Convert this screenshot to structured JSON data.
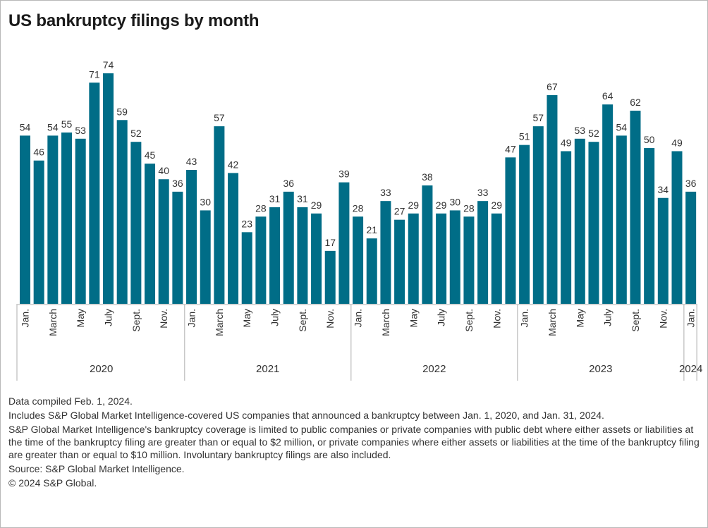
{
  "title": "US bankruptcy filings by month",
  "colors": {
    "bar": "#006d87",
    "axis": "#c8c8c8",
    "label": "#333333"
  },
  "chart_data": {
    "type": "bar",
    "title": "US bankruptcy filings by month",
    "xlabel": "",
    "ylabel": "",
    "ylim": [
      0,
      74
    ],
    "grid": false,
    "legend": "none",
    "years": [
      {
        "label": "2020",
        "start": 0,
        "count": 12
      },
      {
        "label": "2021",
        "start": 12,
        "count": 12
      },
      {
        "label": "2022",
        "start": 24,
        "count": 12
      },
      {
        "label": "2023",
        "start": 36,
        "count": 12
      },
      {
        "label": "2024",
        "start": 48,
        "count": 1
      }
    ],
    "tick_labels": [
      "Jan.",
      "",
      "March",
      "",
      "May",
      "",
      "July",
      "",
      "Sept.",
      "",
      "Nov.",
      "",
      "Jan.",
      "",
      "March",
      "",
      "May",
      "",
      "July",
      "",
      "Sept.",
      "",
      "Nov.",
      "",
      "Jan.",
      "",
      "March",
      "",
      "May",
      "",
      "July",
      "",
      "Sept.",
      "",
      "Nov.",
      "",
      "Jan.",
      "",
      "March",
      "",
      "May",
      "",
      "July",
      "",
      "Sept.",
      "",
      "Nov.",
      "",
      "Jan."
    ],
    "categories": [
      "Jan 2020",
      "Feb 2020",
      "Mar 2020",
      "Apr 2020",
      "May 2020",
      "Jun 2020",
      "Jul 2020",
      "Aug 2020",
      "Sep 2020",
      "Oct 2020",
      "Nov 2020",
      "Dec 2020",
      "Jan 2021",
      "Feb 2021",
      "Mar 2021",
      "Apr 2021",
      "May 2021",
      "Jun 2021",
      "Jul 2021",
      "Aug 2021",
      "Sep 2021",
      "Oct 2021",
      "Nov 2021",
      "Dec 2021",
      "Jan 2022",
      "Feb 2022",
      "Mar 2022",
      "Apr 2022",
      "May 2022",
      "Jun 2022",
      "Jul 2022",
      "Aug 2022",
      "Sep 2022",
      "Oct 2022",
      "Nov 2022",
      "Dec 2022",
      "Jan 2023",
      "Feb 2023",
      "Mar 2023",
      "Apr 2023",
      "May 2023",
      "Jun 2023",
      "Jul 2023",
      "Aug 2023",
      "Sep 2023",
      "Oct 2023",
      "Nov 2023",
      "Dec 2023",
      "Jan 2024"
    ],
    "values": [
      54,
      46,
      54,
      55,
      53,
      71,
      74,
      59,
      52,
      45,
      40,
      36,
      43,
      30,
      57,
      42,
      23,
      28,
      31,
      36,
      31,
      29,
      17,
      39,
      28,
      21,
      33,
      27,
      29,
      38,
      29,
      30,
      28,
      33,
      29,
      47,
      51,
      57,
      67,
      49,
      53,
      52,
      64,
      54,
      62,
      50,
      34,
      49,
      36
    ]
  },
  "notes": [
    "Data compiled Feb. 1, 2024.",
    "Includes S&P Global Market Intelligence-covered US companies that announced a bankruptcy between Jan. 1, 2020, and Jan. 31, 2024.",
    "S&P Global Market Intelligence's bankruptcy coverage is limited to public companies or private companies with public debt where either assets or liabilities at the time of the bankruptcy filing are greater than or equal to $2 million, or private companies where either assets or liabilities at the time of the bankruptcy filing are greater than or equal to $10 million. Involuntary bankruptcy filings are also included.",
    "Source: S&P Global Market Intelligence.",
    "© 2024 S&P Global."
  ]
}
